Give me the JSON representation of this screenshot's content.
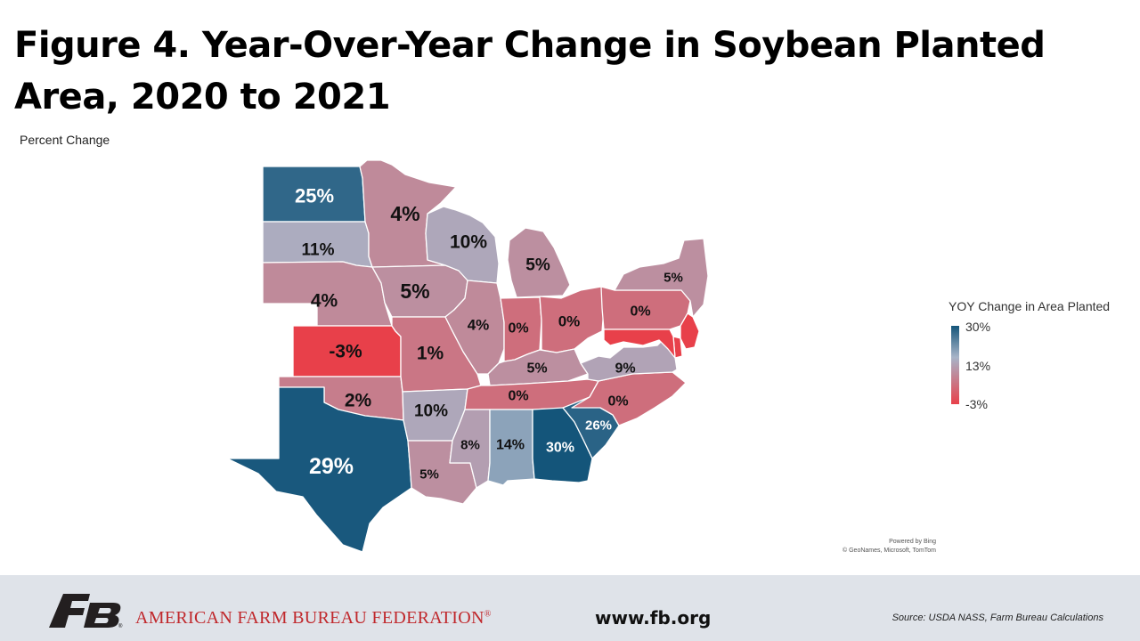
{
  "title": "Figure 4. Year-Over-Year Change in Soybean Planted Area, 2020 to 2021",
  "subtitle": "Percent Change",
  "chart_data": {
    "type": "choropleth",
    "title": "Figure 4. Year-Over-Year Change in Soybean Planted Area, 2020 to 2021",
    "value_unit": "Percent Change",
    "legend": {
      "title": "YOY Change in Area Planted",
      "max": 30,
      "mid": 13,
      "min": -3,
      "max_label": "30%",
      "mid_label": "13%",
      "min_label": "-3%",
      "color_max": "#14557a",
      "color_mid": "#a7b4c8",
      "color_min": "#e8404a"
    },
    "states": [
      {
        "code": "ND",
        "value": 25,
        "label": "25%"
      },
      {
        "code": "SD",
        "value": 11,
        "label": "11%"
      },
      {
        "code": "NE",
        "value": 4,
        "label": "4%"
      },
      {
        "code": "KS",
        "value": -3,
        "label": "-3%"
      },
      {
        "code": "OK",
        "value": 2,
        "label": "2%"
      },
      {
        "code": "TX",
        "value": 29,
        "label": "29%"
      },
      {
        "code": "MN",
        "value": 4,
        "label": "4%"
      },
      {
        "code": "IA",
        "value": 5,
        "label": "5%"
      },
      {
        "code": "MO",
        "value": 1,
        "label": "1%"
      },
      {
        "code": "AR",
        "value": 10,
        "label": "10%"
      },
      {
        "code": "LA",
        "value": 5,
        "label": "5%"
      },
      {
        "code": "WI",
        "value": 10,
        "label": "10%"
      },
      {
        "code": "IL",
        "value": 4,
        "label": "4%"
      },
      {
        "code": "MI",
        "value": 5,
        "label": "5%"
      },
      {
        "code": "IN",
        "value": 0,
        "label": "0%"
      },
      {
        "code": "OH",
        "value": 0,
        "label": "0%"
      },
      {
        "code": "KY",
        "value": 5,
        "label": "5%"
      },
      {
        "code": "TN",
        "value": 0,
        "label": "0%"
      },
      {
        "code": "MS",
        "value": 8,
        "label": "8%"
      },
      {
        "code": "AL",
        "value": 14,
        "label": "14%"
      },
      {
        "code": "GA",
        "value": 30,
        "label": "30%"
      },
      {
        "code": "SC",
        "value": 26,
        "label": "26%"
      },
      {
        "code": "NC",
        "value": 0,
        "label": "0%"
      },
      {
        "code": "VA",
        "value": 9,
        "label": "9%"
      },
      {
        "code": "PA",
        "value": 0,
        "label": "0%"
      },
      {
        "code": "NY",
        "value": 5,
        "label": "5%"
      },
      {
        "code": "NJ",
        "value": null,
        "label": ""
      },
      {
        "code": "DE",
        "value": null,
        "label": ""
      },
      {
        "code": "MD",
        "value": null,
        "label": ""
      }
    ]
  },
  "map_credit": {
    "line1": "Powered by Bing",
    "line2": "© GeoNames, Microsoft, TomTom"
  },
  "footer": {
    "org_name": "AMERICAN FARM BUREAU FEDERATION",
    "trademark": "®",
    "website": "www.fb.org",
    "source": "Source: USDA NASS, Farm Bureau Calculations",
    "logo_color": "#231f20"
  }
}
